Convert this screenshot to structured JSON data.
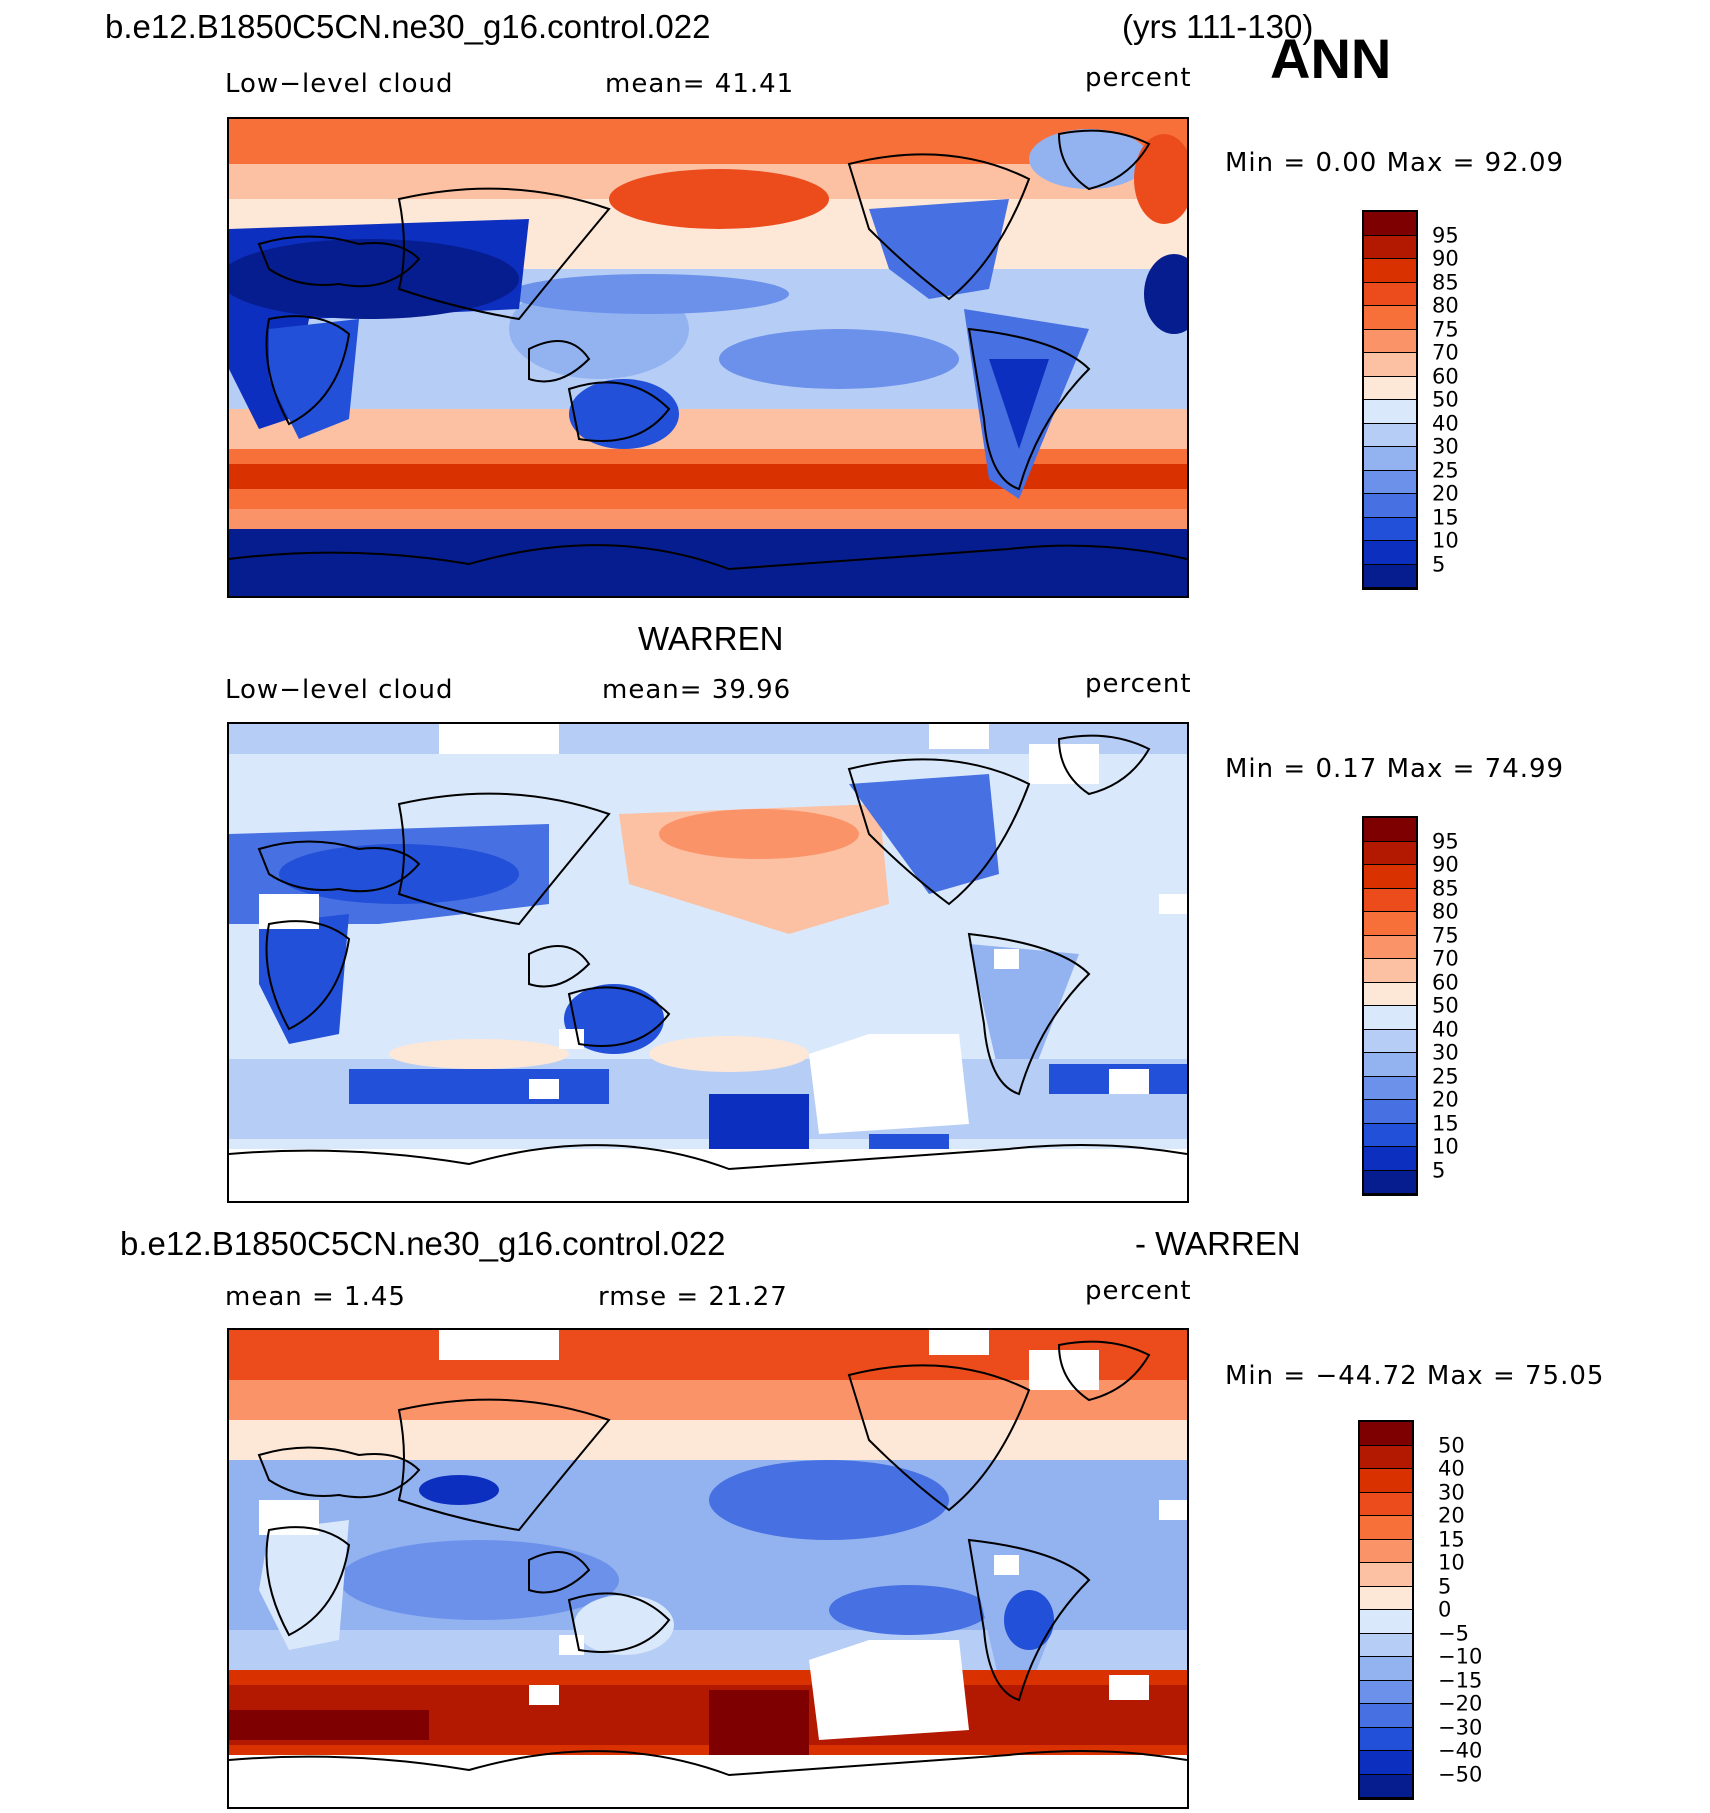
{
  "header": {
    "case_name": "b.e12.B1850C5CN.ne30_g16.control.022",
    "years": "(yrs 111-130)",
    "season": "ANN"
  },
  "panels": [
    {
      "id": "model",
      "title_top": "",
      "field": "Low−level cloud",
      "stat1": "mean=  41.41",
      "units": "percent",
      "minmax": "Min =     0.00  Max =    92.09",
      "colorbar_labels": [
        "95",
        "90",
        "85",
        "80",
        "75",
        "70",
        "60",
        "50",
        "40",
        "30",
        "25",
        "20",
        "15",
        "10",
        "5"
      ]
    },
    {
      "id": "obs",
      "title_top": "WARREN",
      "field": "Low−level cloud",
      "stat1": "mean=  39.96",
      "units": "percent",
      "minmax": "Min =     0.17  Max =    74.99",
      "colorbar_labels": [
        "95",
        "90",
        "85",
        "80",
        "75",
        "70",
        "60",
        "50",
        "40",
        "30",
        "25",
        "20",
        "15",
        "10",
        "5"
      ]
    },
    {
      "id": "diff",
      "title_left": "b.e12.B1850C5CN.ne30_g16.control.022",
      "title_right": "- WARREN",
      "field": "mean =     1.45",
      "stat1": "rmse  =   21.27",
      "units": "percent",
      "minmax": "Min  =  −44.72  Max  =    75.05",
      "colorbar_labels": [
        "50",
        "40",
        "30",
        "20",
        "15",
        "10",
        "5",
        "0",
        "−5",
        "−10",
        "−15",
        "−20",
        "−30",
        "−40",
        "−50"
      ]
    }
  ],
  "colors": {
    "scale": [
      "#7f0000",
      "#b31800",
      "#d93200",
      "#ec4c1c",
      "#f7703a",
      "#fb9369",
      "#fcc1a3",
      "#fde8d8",
      "#d9e8fb",
      "#b6cdf6",
      "#92b2f0",
      "#6c91ea",
      "#4770e2",
      "#2250d8",
      "#0c2fbf",
      "#061d8f"
    ],
    "land": "#000000"
  }
}
